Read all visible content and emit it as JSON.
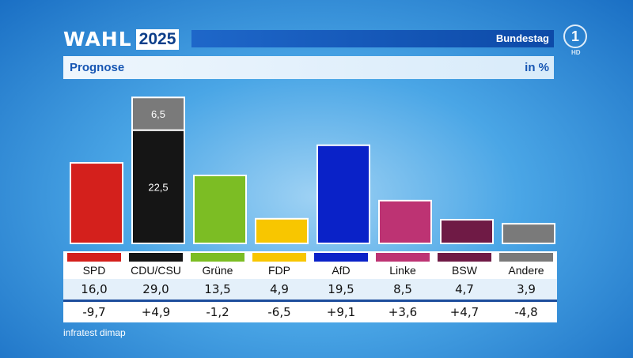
{
  "header": {
    "logo_word": "WAHL",
    "logo_year": "2025",
    "title": "Bundestag",
    "channel_logo": "1",
    "channel_badge": "HD"
  },
  "subheader": {
    "left": "Prognose",
    "right": "in %"
  },
  "chart_data": {
    "type": "bar",
    "categories": [
      "SPD",
      "CDU/CSU",
      "Grüne",
      "FDP",
      "AfD",
      "Linke",
      "BSW",
      "Andere"
    ],
    "values": [
      16.0,
      29.0,
      13.5,
      4.9,
      19.5,
      8.5,
      4.7,
      3.9
    ],
    "value_labels": [
      "16,0",
      "29,0",
      "13,5",
      "4,9",
      "19,5",
      "8,5",
      "4,7",
      "3,9"
    ],
    "changes": [
      "-9,7",
      "+4,9",
      "-1,2",
      "-6,5",
      "+9,1",
      "+3,6",
      "+4,7",
      "-4,8"
    ],
    "colors": [
      "#d4201c",
      "#151515",
      "#7cbd24",
      "#f8c600",
      "#0a22c8",
      "#bd3373",
      "#6f1a45",
      "#7a7a7a"
    ],
    "stacked_segments": {
      "CDU/CSU": [
        {
          "value": 22.5,
          "label": "22,5",
          "color": "#151515"
        },
        {
          "value": 6.5,
          "label": "6,5",
          "color": "#7a7a7a"
        }
      ]
    },
    "title": "Prognose",
    "unit": "in %",
    "ylim": [
      0,
      30
    ]
  },
  "footer": {
    "source": "infratest dimap"
  }
}
